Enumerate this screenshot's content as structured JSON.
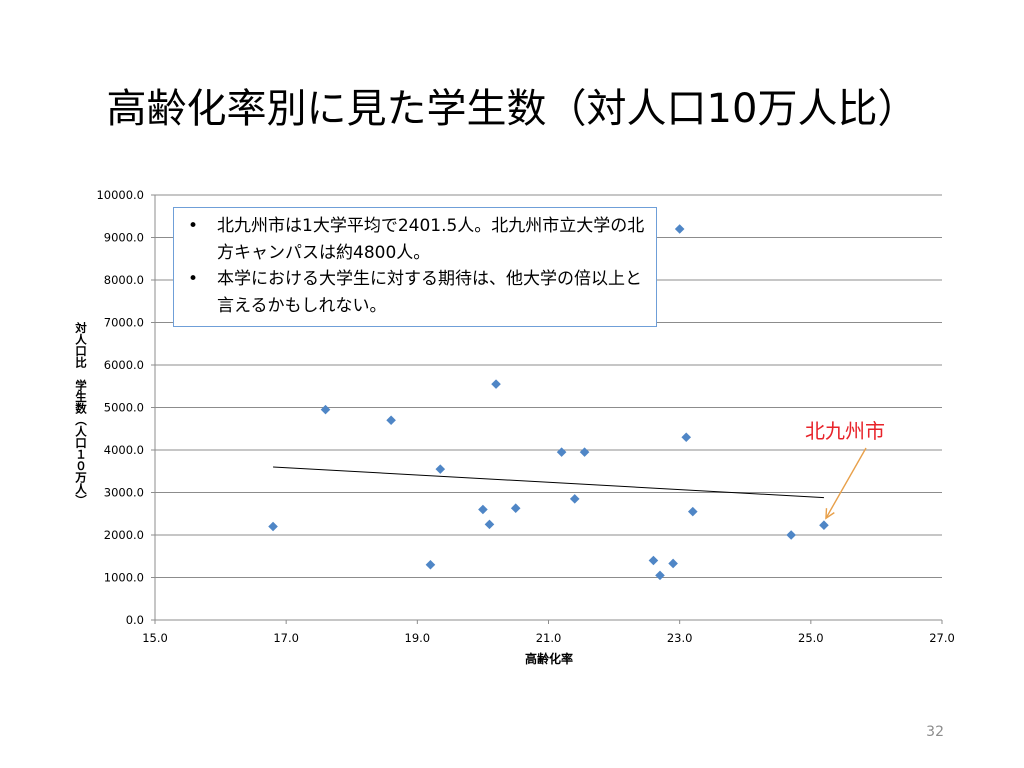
{
  "slide": {
    "title": "高齢化率別に見た学生数（対人口10万人比）",
    "page_number": "32"
  },
  "note": {
    "bullet_symbol": "•",
    "items": [
      "北九州市は1大学平均で2401.5人。北九州市立大学の北方キャンパスは約4800人。",
      "本学における大学生に対する期待は、他大学の倍以上と言えるかもしれない。"
    ]
  },
  "callout": {
    "label": "北九州市",
    "color": "#e8232a"
  },
  "chart_data": {
    "type": "scatter",
    "xlabel": "高齢化率",
    "ylabel": "対人口比　学生数（人口１０万人）",
    "xlim": [
      15.0,
      27.0
    ],
    "ylim": [
      0.0,
      10000.0
    ],
    "x_ticks": [
      "15.0",
      "17.0",
      "19.0",
      "21.0",
      "23.0",
      "25.0",
      "27.0"
    ],
    "y_ticks": [
      "0.0",
      "1000.0",
      "2000.0",
      "3000.0",
      "4000.0",
      "5000.0",
      "6000.0",
      "7000.0",
      "8000.0",
      "9000.0",
      "10000.0"
    ],
    "grid": "horizontal",
    "marker": "diamond",
    "marker_color": "#4f86c6",
    "points": [
      {
        "x": 16.8,
        "y": 2200
      },
      {
        "x": 17.6,
        "y": 4950
      },
      {
        "x": 18.6,
        "y": 4700
      },
      {
        "x": 19.2,
        "y": 1300
      },
      {
        "x": 19.35,
        "y": 3550
      },
      {
        "x": 20.0,
        "y": 2600
      },
      {
        "x": 20.1,
        "y": 2250
      },
      {
        "x": 20.2,
        "y": 5550
      },
      {
        "x": 20.5,
        "y": 2630
      },
      {
        "x": 21.2,
        "y": 3950
      },
      {
        "x": 21.4,
        "y": 2850
      },
      {
        "x": 21.55,
        "y": 3950
      },
      {
        "x": 22.6,
        "y": 1400
      },
      {
        "x": 22.7,
        "y": 1050
      },
      {
        "x": 22.9,
        "y": 1330
      },
      {
        "x": 23.0,
        "y": 9200
      },
      {
        "x": 23.1,
        "y": 4300
      },
      {
        "x": 23.2,
        "y": 2550
      },
      {
        "x": 24.7,
        "y": 2000
      },
      {
        "x": 25.2,
        "y": 2230
      }
    ],
    "trendline": {
      "x": [
        16.8,
        25.2
      ],
      "y": [
        3600,
        2880
      ],
      "color": "#000000"
    },
    "annotation": {
      "text": "北九州市",
      "points_to": {
        "x": 25.2,
        "y": 2230
      },
      "color": "#e8a04a"
    }
  }
}
